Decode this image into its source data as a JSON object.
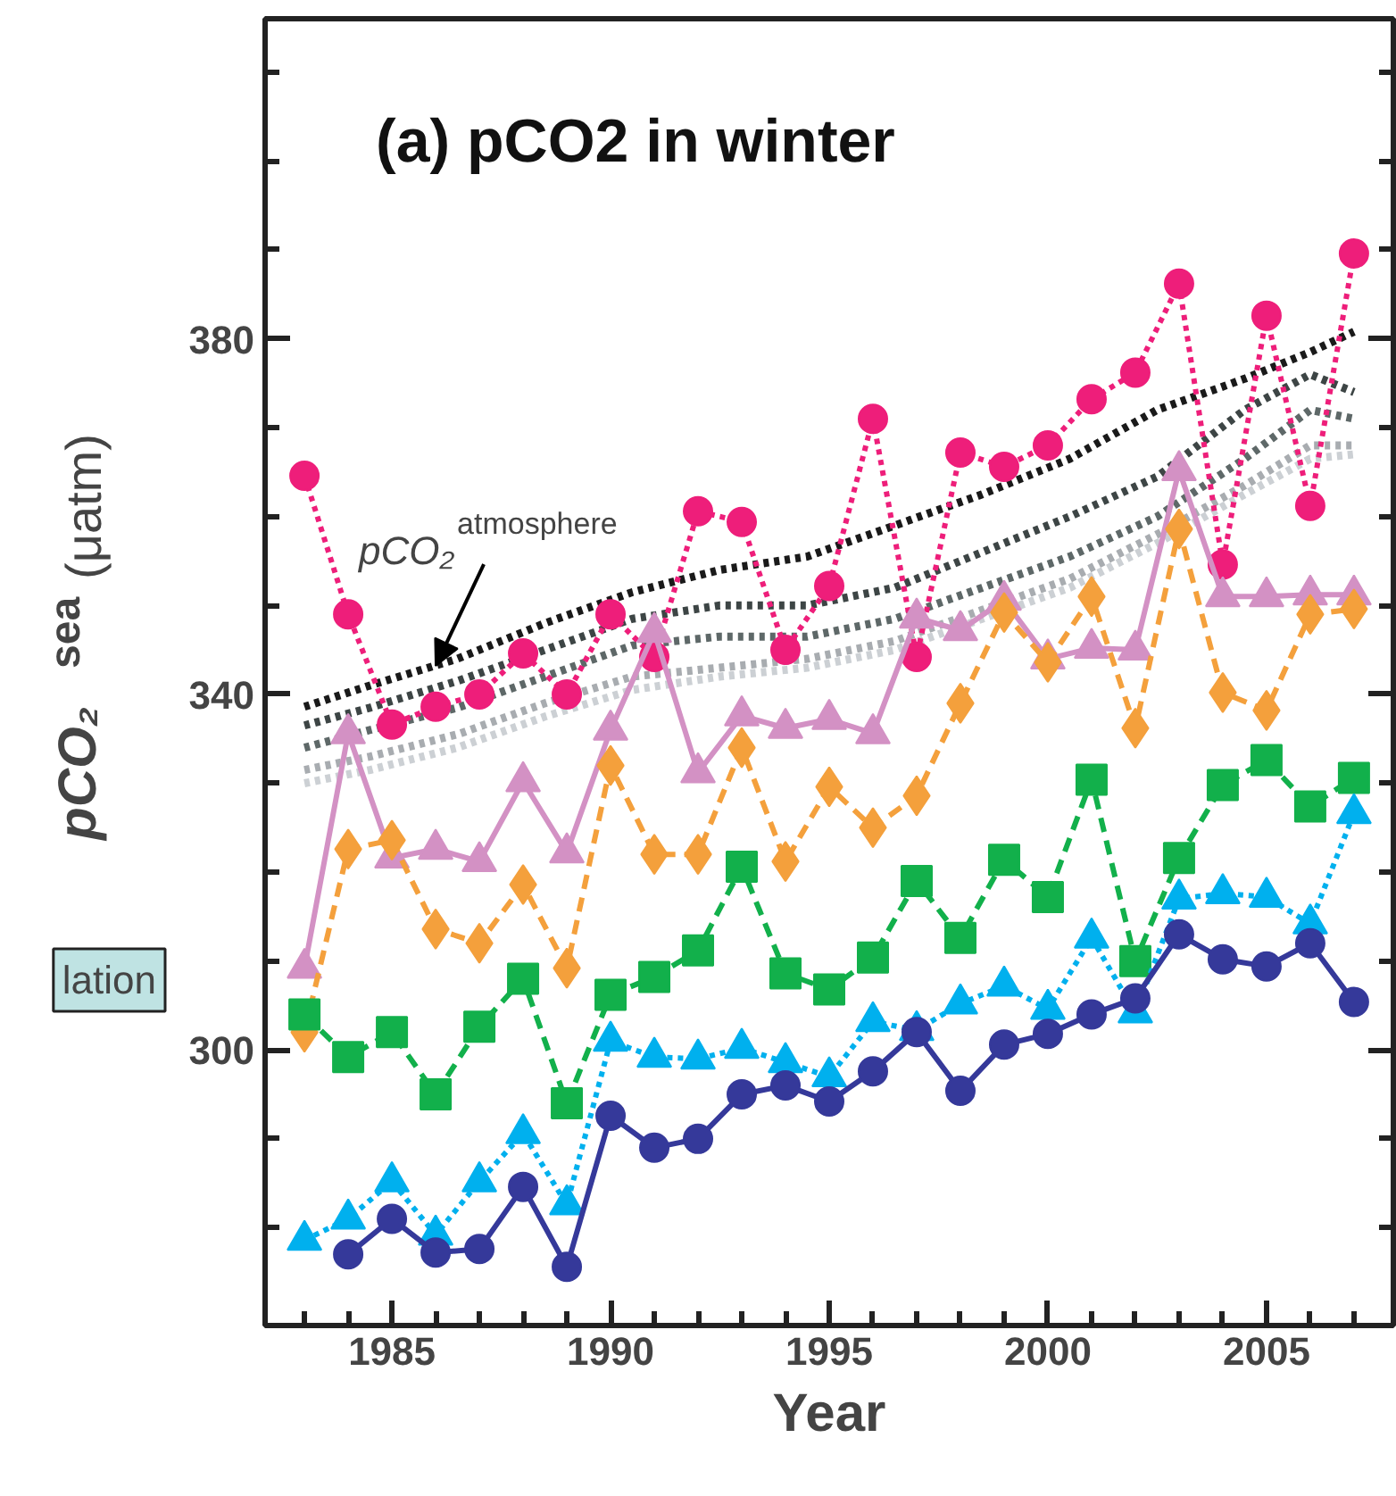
{
  "chart_data": {
    "type": "line",
    "title": "(a)  pCO2 in winter",
    "xlabel": "Year",
    "ylabel": "pCO₂$^{sea}$(μatm)",
    "x": [
      1983,
      1984,
      1985,
      1986,
      1987,
      1988,
      1989,
      1990,
      1991,
      1992,
      1993,
      1994,
      1995,
      1996,
      1997,
      1998,
      1999,
      2000,
      2001,
      2002,
      2003,
      2004,
      2005,
      2006,
      2007
    ],
    "xlim": [
      1982.1,
      2007.9
    ],
    "ylim": [
      269,
      416
    ],
    "xticks": [
      {
        "value": 1983,
        "label": null
      },
      {
        "value": 1984,
        "label": null
      },
      1985,
      {
        "value": 1986,
        "label": null
      },
      {
        "value": 1987,
        "label": null
      },
      {
        "value": 1988,
        "label": null
      },
      {
        "value": 1989,
        "label": null
      },
      1990,
      {
        "value": 1991,
        "label": null
      },
      {
        "value": 1992,
        "label": null
      },
      {
        "value": 1993,
        "label": null
      },
      {
        "value": 1994,
        "label": null
      },
      1995,
      {
        "value": 1996,
        "label": null
      },
      {
        "value": 1997,
        "label": null
      },
      {
        "value": 1998,
        "label": null
      },
      {
        "value": 1999,
        "label": null
      },
      2000,
      {
        "value": 2001,
        "label": null
      },
      {
        "value": 2002,
        "label": null
      },
      {
        "value": 2003,
        "label": null
      },
      {
        "value": 2004,
        "label": null
      },
      2005,
      {
        "value": 2006,
        "label": null
      },
      {
        "value": 2007,
        "label": null
      }
    ],
    "yticks": [
      {
        "value": 280,
        "label": null
      },
      {
        "value": 290,
        "label": null
      },
      300,
      {
        "value": 310,
        "label": null
      },
      {
        "value": 320,
        "label": null
      },
      {
        "value": 330,
        "label": null
      },
      340,
      {
        "value": 350,
        "label": null
      },
      {
        "value": 360,
        "label": null
      },
      {
        "value": 370,
        "label": null
      },
      380,
      {
        "value": 390,
        "label": null
      },
      {
        "value": 400,
        "label": null
      },
      {
        "value": 410,
        "label": null
      }
    ],
    "grid": false,
    "series": [
      {
        "color": "#1a1a1a",
        "marker": "none",
        "line_style": "dotted",
        "x": [
          1983,
          1984.5,
          1986.5,
          1988.5,
          1990.5,
          1992.5,
          1994.5,
          1996.5,
          1998.5,
          2000.5,
          2002.5,
          2004.5,
          2006,
          2007
        ],
        "values": [
          338.6,
          341,
          344,
          348,
          351.5,
          354,
          355.5,
          359,
          362.5,
          366.5,
          372,
          375.5,
          378.5,
          380.8
        ]
      },
      {
        "color": "#3d4545",
        "marker": "none",
        "line_style": "dotted",
        "x": [
          1983,
          1984.5,
          1986.5,
          1988.5,
          1990.5,
          1992.5,
          1994.5,
          1996.5,
          1998.5,
          2000.5,
          2002.5,
          2004.5,
          2006,
          2007
        ],
        "values": [
          336.5,
          338.5,
          341.5,
          345,
          348.5,
          350,
          350,
          352,
          356,
          360,
          364.5,
          372,
          376,
          374
        ]
      },
      {
        "color": "#5e6868",
        "marker": "none",
        "line_style": "dotted",
        "x": [
          1983,
          1984.5,
          1986.5,
          1988.5,
          1990.5,
          1992.5,
          1994.5,
          1996.5,
          1998.5,
          2000.5,
          2002.5,
          2004.5,
          2006,
          2007
        ],
        "values": [
          334,
          336,
          338.5,
          342,
          345.5,
          346.5,
          346.5,
          348.5,
          352,
          355.5,
          360,
          366.5,
          372,
          371
        ]
      },
      {
        "color": "#a8acb0",
        "marker": "none",
        "line_style": "dotted",
        "x": [
          1983,
          1984.5,
          1986.5,
          1988.5,
          1990.5,
          1992.5,
          1994.5,
          1996.5,
          1998.5,
          2000.5,
          2002.5,
          2004.5,
          2006,
          2007
        ],
        "values": [
          331.5,
          333,
          335.5,
          339,
          342,
          343,
          344,
          346,
          349.5,
          353,
          358,
          363.5,
          368,
          368
        ]
      },
      {
        "color": "#ccd0d4",
        "marker": "none",
        "line_style": "dotted",
        "x": [
          1983,
          1984.5,
          1986.5,
          1988.5,
          1990.5,
          1992.5,
          1994.5,
          1996.5,
          1998.5,
          2000.5,
          2002.5,
          2004.5,
          2006,
          2007
        ],
        "values": [
          330,
          331.5,
          334,
          337.5,
          340.5,
          342,
          343,
          345,
          348.5,
          352,
          357,
          362.5,
          366.5,
          367
        ]
      },
      {
        "color": "#ee1e7a",
        "marker": "circle",
        "line_style": "dotted",
        "values": [
          364.6,
          349,
          336.6,
          338.6,
          340,
          344.6,
          340,
          349,
          344.2,
          360.6,
          359.4,
          345,
          352.2,
          371,
          344.2,
          367.2,
          365.6,
          368,
          373.2,
          376.2,
          386.2,
          354.6,
          382.6,
          361.2,
          389.6
        ]
      },
      {
        "color": "#d391c4",
        "marker": "triangle",
        "line_style": "solid",
        "values": [
          309.2,
          335.6,
          321.6,
          322.6,
          321.2,
          330.2,
          322.2,
          336,
          347,
          331.2,
          337.6,
          336.2,
          337.2,
          335.6,
          348.6,
          347.2,
          350.6,
          344,
          345.2,
          345,
          365.2,
          351,
          351,
          351.2,
          351.2
        ]
      },
      {
        "color": "#f4a03c",
        "marker": "diamond",
        "line_style": "dashed",
        "values": [
          302,
          322.6,
          323.6,
          313.6,
          312,
          318.6,
          309.2,
          332,
          322,
          322,
          334,
          321.2,
          329.6,
          325,
          328.6,
          339,
          349.2,
          343.6,
          351,
          336.2,
          358.6,
          340.2,
          338.2,
          349,
          349.6
        ]
      },
      {
        "color": "#12b04b",
        "marker": "square",
        "line_style": "dashed",
        "values": [
          304,
          299.2,
          302,
          295,
          302.6,
          308,
          294,
          306.2,
          308.2,
          311.2,
          320.6,
          308.6,
          306.8,
          310.4,
          319,
          312.6,
          321.4,
          317.2,
          330.4,
          310,
          321.6,
          329.8,
          332.6,
          327.4,
          330.6
        ]
      },
      {
        "color": "#00b0ee",
        "marker": "triangle",
        "line_style": "dotted",
        "values": [
          278.6,
          281,
          285.2,
          279.2,
          285.2,
          290.6,
          282.6,
          301,
          299.2,
          299,
          300.2,
          298.6,
          297,
          303.2,
          302.2,
          305.2,
          307.2,
          304.6,
          312.6,
          304.2,
          317,
          317.6,
          317.2,
          314.2,
          326.6
        ]
      },
      {
        "color": "#35399a",
        "marker": "circle",
        "line_style": "solid",
        "values": [
          null,
          277,
          281,
          277.2,
          277.6,
          284.6,
          275.6,
          292.6,
          289,
          290,
          295,
          296,
          294.2,
          297.6,
          302,
          295.4,
          300.6,
          301.8,
          304,
          305.8,
          313,
          310.2,
          309.4,
          312,
          305.4
        ]
      }
    ],
    "annotations": [
      {
        "text": "pCO₂$^{atmosphere}$",
        "x": 1986.0,
        "y": 343.2
      },
      "lation"
    ]
  }
}
